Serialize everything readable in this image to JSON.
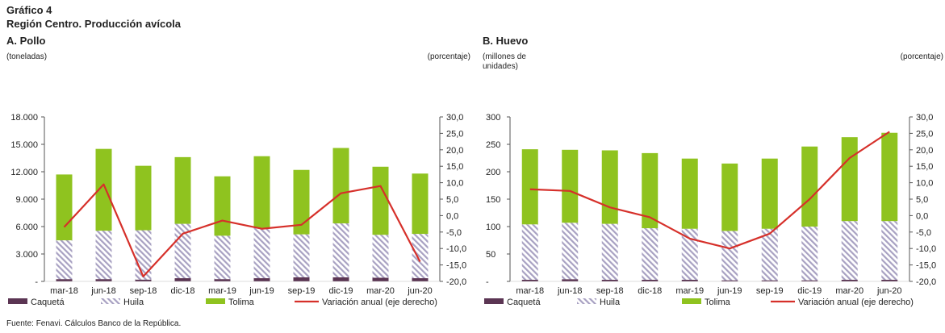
{
  "header": {
    "title": "Gráfico 4",
    "subtitle": "Región Centro. Producción avícola"
  },
  "colors": {
    "caqueta": "#5b3553",
    "huila_hatch": "#a8a1c2",
    "tolima": "#8fc31f",
    "line": "#d6302a",
    "axis": "#555555"
  },
  "legend": [
    "Caquetá",
    "Huila",
    "Tolima",
    "Variación anual (eje derecho)"
  ],
  "source": "Fuente: Fenavi. Cálculos Banco de la República.",
  "chart_data": [
    {
      "type": "bar",
      "title": "A. Pollo",
      "ylabel": "(toneladas)",
      "y2label": "(porcentaje)",
      "categories": [
        "mar-18",
        "jun-18",
        "sep-18",
        "dic-18",
        "mar-19",
        "jun-19",
        "sep-19",
        "dic-19",
        "mar-20",
        "jun-20"
      ],
      "ylim": [
        0,
        18000
      ],
      "yticks": [
        "-",
        "3.000",
        "6.000",
        "9.000",
        "12.000",
        "15.000",
        "18.000"
      ],
      "y2lim": [
        -20,
        30
      ],
      "y2ticks": [
        "-20,0",
        "-15,0",
        "-10,0",
        "-5,0",
        "0,0",
        "5,0",
        "10,0",
        "15,0",
        "20,0",
        "25,0",
        "30,0"
      ],
      "series": [
        {
          "name": "Caquetá",
          "values": [
            250,
            250,
            200,
            350,
            250,
            350,
            450,
            450,
            400,
            350
          ]
        },
        {
          "name": "Huila",
          "values": [
            4250,
            5300,
            5400,
            5950,
            4750,
            5500,
            4700,
            5900,
            4700,
            4850
          ]
        },
        {
          "name": "Tolima",
          "values": [
            7200,
            8950,
            7050,
            7300,
            6500,
            7850,
            7050,
            8250,
            7450,
            6600
          ]
        },
        {
          "name": "Variación anual (eje derecho)",
          "values": [
            -3.5,
            9.5,
            -18.5,
            -5.5,
            -1.5,
            -4.0,
            -2.8,
            6.8,
            9.0,
            -14.0
          ]
        }
      ]
    },
    {
      "type": "bar",
      "title": "B. Huevo",
      "ylabel": "(millones de unidades)",
      "y2label": "(porcentaje)",
      "categories": [
        "mar-18",
        "jun-18",
        "sep-18",
        "dic-18",
        "mar-19",
        "jun-19",
        "sep-19",
        "dic-19",
        "mar-20",
        "jun-20"
      ],
      "ylim": [
        0,
        300
      ],
      "yticks": [
        "-",
        "50",
        "100",
        "150",
        "200",
        "250",
        "300"
      ],
      "y2lim": [
        -20,
        30
      ],
      "y2ticks": [
        "-20,0",
        "-15,0",
        "-10,0",
        "-5,0",
        "0,0",
        "5,0",
        "10,0",
        "15,0",
        "20,0",
        "25,0",
        "30,0"
      ],
      "series": [
        {
          "name": "Caquetá",
          "values": [
            3,
            4,
            3,
            3,
            3,
            2,
            2,
            2,
            3,
            3
          ]
        },
        {
          "name": "Huila",
          "values": [
            101,
            103,
            102,
            94,
            93,
            90,
            94,
            98,
            107,
            107
          ]
        },
        {
          "name": "Tolima",
          "values": [
            137,
            133,
            134,
            137,
            128,
            123,
            128,
            146,
            153,
            161
          ]
        },
        {
          "name": "Variación anual (eje derecho)",
          "values": [
            8.0,
            7.5,
            2.5,
            -0.5,
            -7.0,
            -10.0,
            -5.5,
            5.0,
            17.5,
            25.5
          ]
        }
      ]
    }
  ]
}
